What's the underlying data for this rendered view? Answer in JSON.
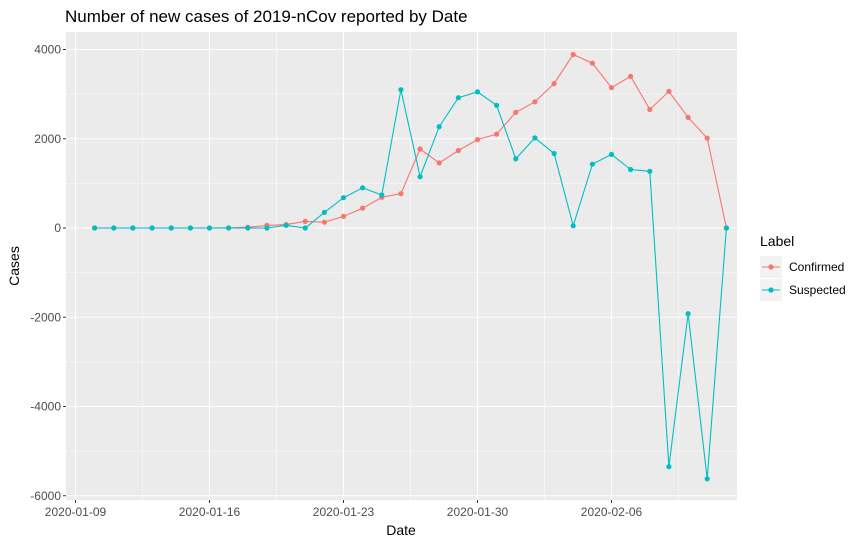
{
  "chart_data": {
    "type": "line",
    "title": "Number of new cases of 2019-nCov reported by Date",
    "xlabel": "Date",
    "ylabel": "Cases",
    "x_ticks": [
      "2020-01-09",
      "2020-01-16",
      "2020-01-23",
      "2020-01-30",
      "2020-02-06"
    ],
    "y_ticks": [
      4000,
      2000,
      0,
      -2000,
      -4000,
      -6000
    ],
    "ylim": [
      -6000,
      4000
    ],
    "grid": true,
    "legend": {
      "title": "Label",
      "placement": "right"
    },
    "series": [
      {
        "name": "Confirmed",
        "color": "#F8766D",
        "x": [
          "2020-01-10",
          "2020-01-11",
          "2020-01-12",
          "2020-01-13",
          "2020-01-14",
          "2020-01-15",
          "2020-01-16",
          "2020-01-17",
          "2020-01-18",
          "2020-01-19",
          "2020-01-20",
          "2020-01-21",
          "2020-01-22",
          "2020-01-23",
          "2020-01-24",
          "2020-01-25",
          "2020-01-26",
          "2020-01-27",
          "2020-01-28",
          "2020-01-29",
          "2020-01-30",
          "2020-01-31",
          "2020-02-01",
          "2020-02-02",
          "2020-02-03",
          "2020-02-04",
          "2020-02-05",
          "2020-02-06",
          "2020-02-07",
          "2020-02-08",
          "2020-02-09",
          "2020-02-10",
          "2020-02-11",
          "2020-02-12"
        ],
        "values": [
          0,
          0,
          0,
          0,
          0,
          0,
          0,
          4,
          17,
          59,
          77,
          149,
          131,
          259,
          444,
          688,
          769,
          1771,
          1459,
          1737,
          1982,
          2102,
          2590,
          2829,
          3235,
          3887,
          3694,
          3143,
          3399,
          2656,
          3062,
          2478,
          2015,
          0
        ]
      },
      {
        "name": "Suspected",
        "color": "#00BFC4",
        "x": [
          "2020-01-10",
          "2020-01-11",
          "2020-01-12",
          "2020-01-13",
          "2020-01-14",
          "2020-01-15",
          "2020-01-16",
          "2020-01-17",
          "2020-01-18",
          "2020-01-19",
          "2020-01-20",
          "2020-01-21",
          "2020-01-22",
          "2020-01-23",
          "2020-01-24",
          "2020-01-25",
          "2020-01-26",
          "2020-01-27",
          "2020-01-28",
          "2020-01-29",
          "2020-01-30",
          "2020-01-31",
          "2020-02-01",
          "2020-02-02",
          "2020-02-03",
          "2020-02-04",
          "2020-02-05",
          "2020-02-06",
          "2020-02-07",
          "2020-02-08",
          "2020-02-09",
          "2020-02-10",
          "2020-02-11",
          "2020-02-12"
        ],
        "values": [
          0,
          0,
          0,
          0,
          0,
          0,
          0,
          0,
          0,
          0,
          60,
          0,
          350,
          680,
          900,
          740,
          3100,
          1150,
          2270,
          2920,
          3050,
          2750,
          1550,
          2020,
          1670,
          50,
          1430,
          1650,
          1310,
          1270,
          -5350,
          -1920,
          -5620,
          0
        ]
      }
    ]
  }
}
